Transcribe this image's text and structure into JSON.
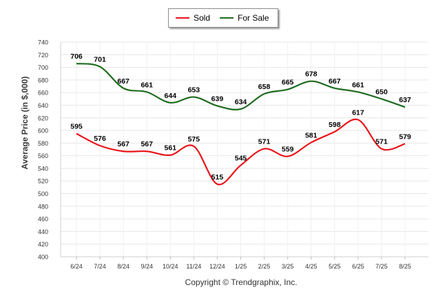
{
  "chart_data": {
    "type": "line",
    "categories": [
      "6/24",
      "7/24",
      "8/24",
      "9/24",
      "10/24",
      "11/24",
      "12/24",
      "1/25",
      "2/25",
      "3/25",
      "4/25",
      "5/25",
      "6/25",
      "7/25",
      "8/25"
    ],
    "series": [
      {
        "name": "Sold",
        "color": "#e8151b",
        "values": [
          595,
          576,
          567,
          567,
          561,
          575,
          515,
          545,
          571,
          559,
          581,
          598,
          617,
          571,
          579
        ]
      },
      {
        "name": "For Sale",
        "color": "#1e6b1e",
        "values": [
          706,
          701,
          667,
          661,
          644,
          653,
          639,
          634,
          658,
          665,
          678,
          667,
          661,
          650,
          637
        ]
      }
    ],
    "ylabel": "Average Price (in $,000)",
    "ylim": [
      400,
      740
    ],
    "yticks": [
      400,
      420,
      440,
      460,
      480,
      500,
      520,
      540,
      560,
      580,
      600,
      620,
      640,
      660,
      680,
      700,
      720,
      740
    ],
    "grid": true,
    "legend_position": "top-center"
  },
  "footer": "Copyright © Trendgraphix, Inc."
}
